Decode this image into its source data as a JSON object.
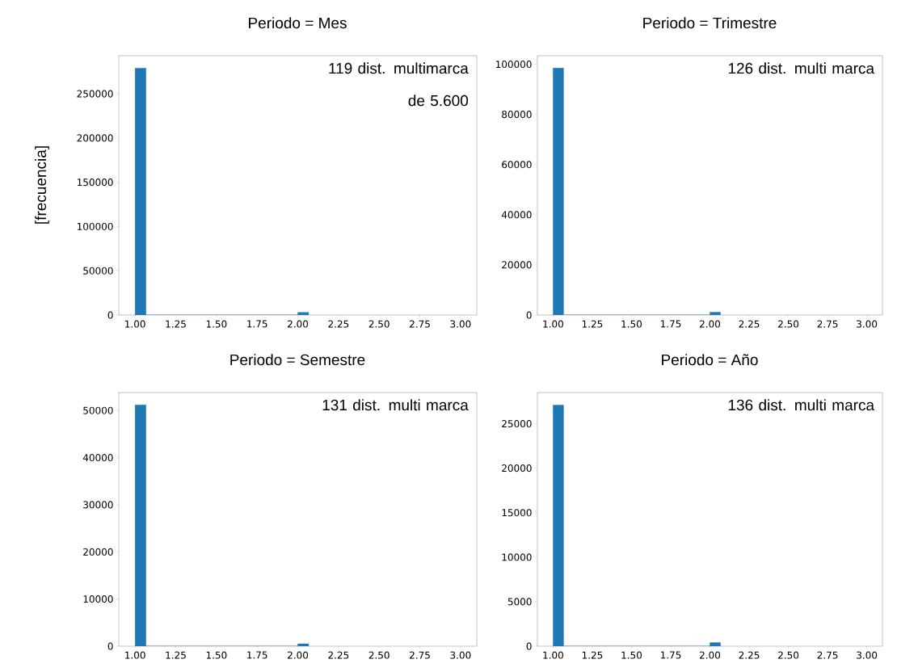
{
  "chart_data": [
    {
      "type": "histogram",
      "title": "Periodo = Mes",
      "ylabel": "[frecuencia]",
      "annotations": [
        "119 dist. multimarca de 5.600"
      ],
      "bins": [
        1,
        1.067,
        2,
        2.067
      ],
      "values": [
        279000,
        0,
        3000
      ],
      "color": "#1f77b4",
      "xlim": [
        0.9,
        3.1
      ],
      "ylim": [
        0,
        293000
      ],
      "xticks": [
        {
          "value": 1,
          "label": "1.00"
        },
        {
          "value": 1.25,
          "label": "1.25"
        },
        {
          "value": 1.5,
          "label": "1.50"
        },
        {
          "value": 1.75,
          "label": "1.75"
        },
        {
          "value": 2,
          "label": "2.00"
        },
        {
          "value": 2.25,
          "label": "2.25"
        },
        {
          "value": 2.5,
          "label": "2.50"
        },
        {
          "value": 2.75,
          "label": "2.75"
        },
        {
          "value": 3,
          "label": "3.00"
        }
      ],
      "yticks": [
        0,
        50000,
        100000,
        150000,
        200000,
        250000
      ],
      "grid": false
    },
    {
      "type": "histogram",
      "title": "Periodo = Trimestre",
      "annotations": [
        "126 dist. multi marca"
      ],
      "bins": [
        1,
        1.067,
        2,
        2.067
      ],
      "values": [
        98500,
        0,
        1100
      ],
      "color": "#1f77b4",
      "xlim": [
        0.9,
        3.1
      ],
      "ylim": [
        0,
        103400
      ],
      "xticks": [
        {
          "value": 1,
          "label": "1.00"
        },
        {
          "value": 1.25,
          "label": "1.25"
        },
        {
          "value": 1.5,
          "label": "1.50"
        },
        {
          "value": 1.75,
          "label": "1.75"
        },
        {
          "value": 2,
          "label": "2.00"
        },
        {
          "value": 2.25,
          "label": "2.25"
        },
        {
          "value": 2.5,
          "label": "2.50"
        },
        {
          "value": 2.75,
          "label": "2.75"
        },
        {
          "value": 3,
          "label": "3.00"
        }
      ],
      "yticks": [
        0,
        20000,
        40000,
        60000,
        80000,
        100000
      ],
      "grid": false
    },
    {
      "type": "histogram",
      "title": "Periodo = Semestre",
      "annotations": [
        "131 dist. multi marca"
      ],
      "bins": [
        1,
        1.067,
        2,
        2.067
      ],
      "values": [
        51200,
        0,
        500
      ],
      "color": "#1f77b4",
      "xlim": [
        0.9,
        3.1
      ],
      "ylim": [
        0,
        53800
      ],
      "xticks": [
        {
          "value": 1,
          "label": "1.00"
        },
        {
          "value": 1.25,
          "label": "1.25"
        },
        {
          "value": 1.5,
          "label": "1.50"
        },
        {
          "value": 1.75,
          "label": "1.75"
        },
        {
          "value": 2,
          "label": "2.00"
        },
        {
          "value": 2.25,
          "label": "2.25"
        },
        {
          "value": 2.5,
          "label": "2.50"
        },
        {
          "value": 2.75,
          "label": "2.75"
        },
        {
          "value": 3,
          "label": "3.00"
        }
      ],
      "yticks": [
        0,
        10000,
        20000,
        30000,
        40000,
        50000
      ],
      "grid": false
    },
    {
      "type": "histogram",
      "title": "Periodo = Año",
      "annotations": [
        "136 dist. multi marca"
      ],
      "bins": [
        1,
        1.067,
        2,
        2.067
      ],
      "values": [
        27100,
        0,
        400
      ],
      "color": "#1f77b4",
      "xlim": [
        0.9,
        3.1
      ],
      "ylim": [
        0,
        28500
      ],
      "xticks": [
        {
          "value": 1,
          "label": "1.00"
        },
        {
          "value": 1.25,
          "label": "1.25"
        },
        {
          "value": 1.5,
          "label": "1.50"
        },
        {
          "value": 1.75,
          "label": "1.75"
        },
        {
          "value": 2,
          "label": "2.00"
        },
        {
          "value": 2.25,
          "label": "2.25"
        },
        {
          "value": 2.5,
          "label": "2.50"
        },
        {
          "value": 2.75,
          "label": "2.75"
        },
        {
          "value": 3,
          "label": "3.00"
        }
      ],
      "yticks": [
        0,
        5000,
        10000,
        15000,
        20000,
        25000
      ],
      "grid": false
    }
  ]
}
